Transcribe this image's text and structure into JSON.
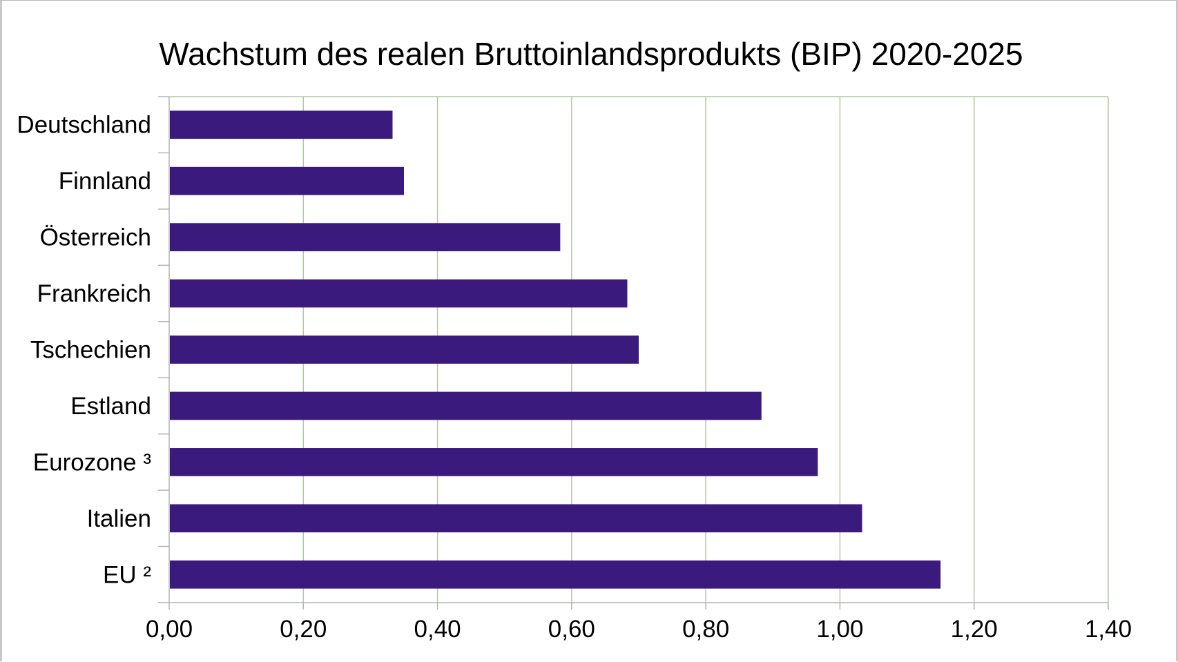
{
  "chart_data": {
    "type": "bar",
    "orientation": "horizontal",
    "title": "Wachstum des realen Bruttoinlandsprodukts (BIP) 2020-2025",
    "xlabel": "",
    "ylabel": "",
    "categories": [
      "Deutschland",
      "Finnland",
      "Österreich",
      "Frankreich",
      "Tschechien",
      "Estland",
      "Eurozone ³",
      "Italien",
      "EU ²"
    ],
    "values": [
      0.333,
      0.35,
      0.583,
      0.683,
      0.7,
      0.883,
      0.967,
      1.033,
      1.15
    ],
    "xlim": [
      0,
      1.4
    ],
    "xticks": [
      0,
      0.2,
      0.4,
      0.6,
      0.8,
      1.0,
      1.2,
      1.4
    ],
    "xtick_labels": [
      "0,00",
      "0,20",
      "0,40",
      "0,60",
      "0,80",
      "1,00",
      "1,20",
      "1,40"
    ],
    "bar_color": "#3b1a7e",
    "grid": "vertical",
    "grid_color": "#b4c7a3",
    "legend": "none"
  }
}
